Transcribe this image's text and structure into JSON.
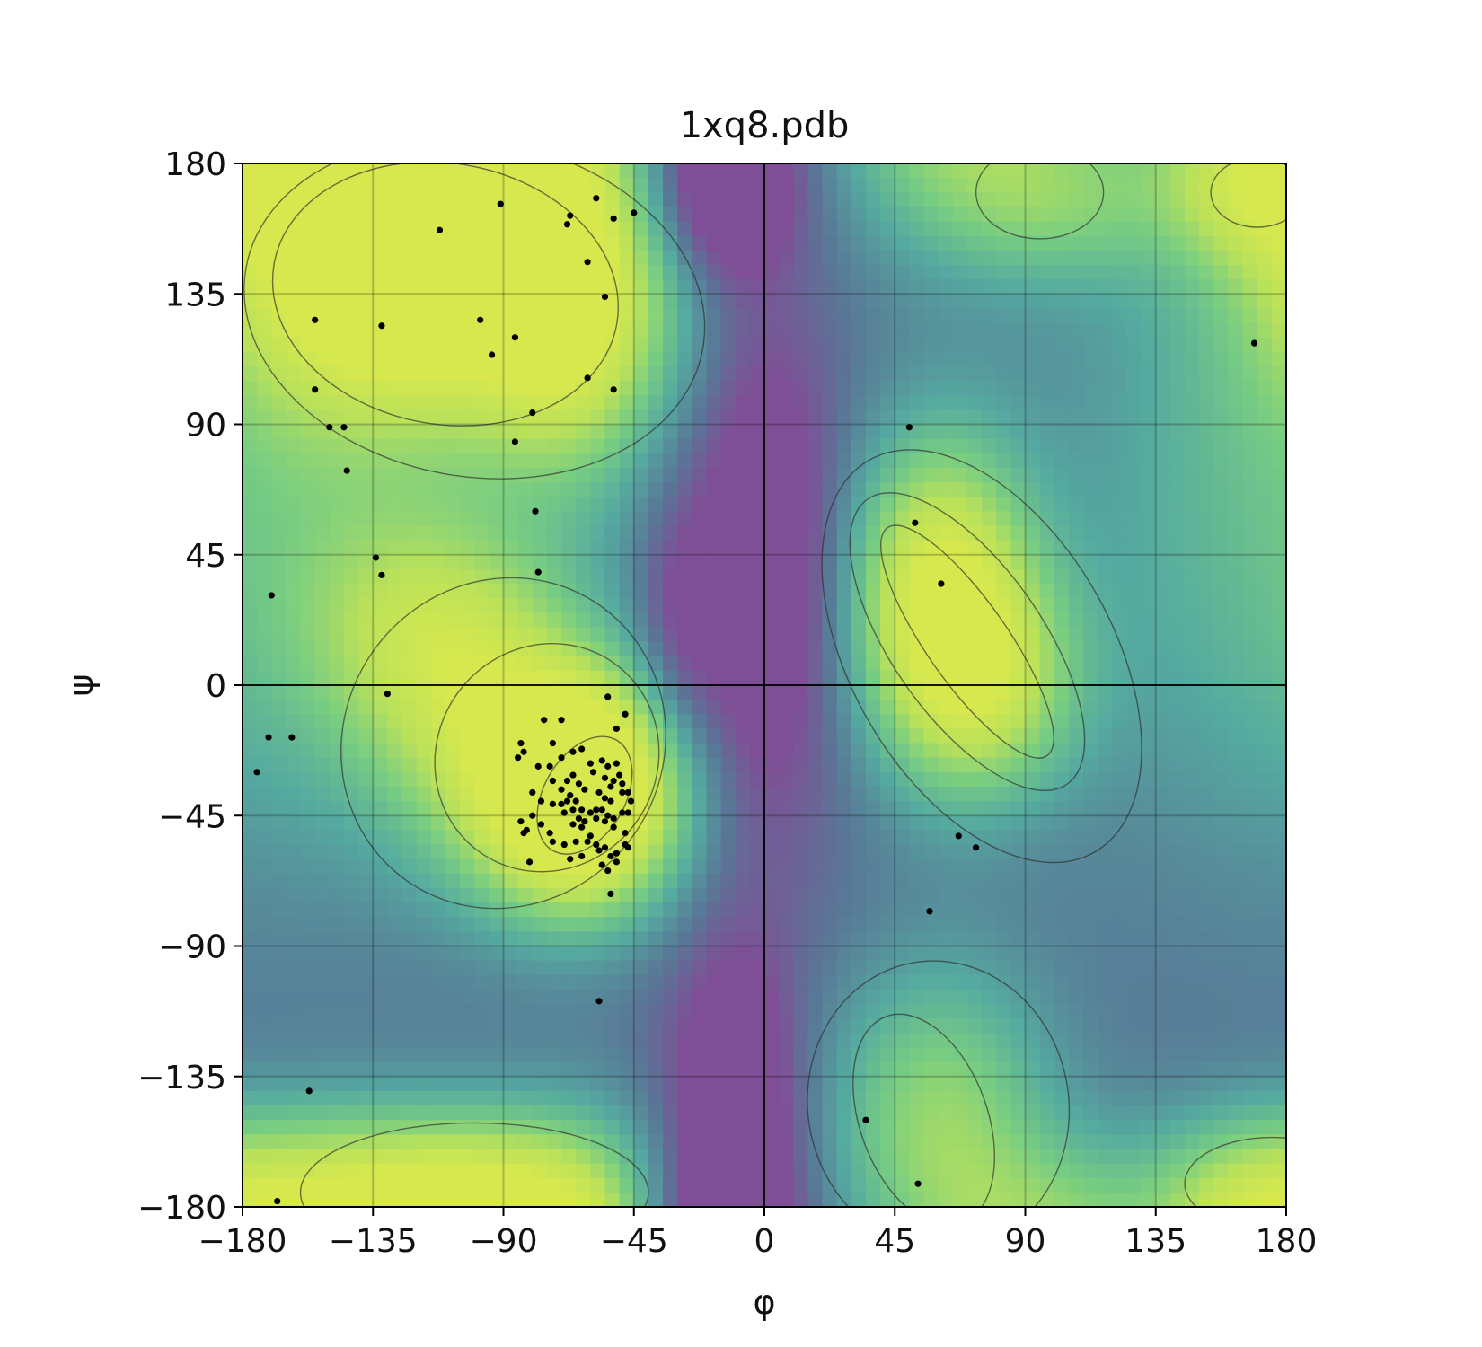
{
  "chart_data": {
    "type": "scatter",
    "title": "1xq8.pdb",
    "xlabel": "φ",
    "ylabel": "ψ",
    "xlim": [
      -180,
      180
    ],
    "ylim": [
      -180,
      180
    ],
    "x_ticks": [
      -180,
      -135,
      -90,
      -45,
      0,
      45,
      90,
      135,
      180
    ],
    "y_ticks": [
      -180,
      -135,
      -90,
      -45,
      0,
      45,
      90,
      135,
      180
    ],
    "x_tick_labels": [
      "−180",
      "−135",
      "−90",
      "−45",
      "0",
      "45",
      "90",
      "135",
      "180"
    ],
    "y_tick_labels": [
      "−180",
      "−135",
      "−90",
      "−45",
      "0",
      "45",
      "90",
      "135",
      "180"
    ],
    "grid": true,
    "background": "density heatmap (viridis) with contour lines",
    "colors": {
      "point": "#000000",
      "contour": "#2b2b2b",
      "high_density": "#d4e84e",
      "mid_density": "#5fb89a",
      "low_density": "#7e4f96"
    },
    "points": [
      [
        -112,
        157
      ],
      [
        -91,
        166
      ],
      [
        -68,
        159
      ],
      [
        -67,
        162
      ],
      [
        -58,
        168
      ],
      [
        -52,
        161
      ],
      [
        -45,
        163
      ],
      [
        -61,
        146
      ],
      [
        -55,
        134
      ],
      [
        -155,
        126
      ],
      [
        -132,
        124
      ],
      [
        -98,
        126
      ],
      [
        -94,
        114
      ],
      [
        -86,
        120
      ],
      [
        -61,
        106
      ],
      [
        -52,
        102
      ],
      [
        -155,
        102
      ],
      [
        -150,
        89
      ],
      [
        -145,
        89
      ],
      [
        -144,
        74
      ],
      [
        -80,
        94
      ],
      [
        -86,
        84
      ],
      [
        -79,
        60
      ],
      [
        -78,
        39
      ],
      [
        -134,
        44
      ],
      [
        -132,
        38
      ],
      [
        -170,
        31
      ],
      [
        -130,
        -3
      ],
      [
        -171,
        -18
      ],
      [
        -163,
        -18
      ],
      [
        -175,
        -30
      ],
      [
        -54,
        -4
      ],
      [
        -48,
        -10
      ],
      [
        -51,
        -15
      ],
      [
        -76,
        -12
      ],
      [
        -70,
        -12
      ],
      [
        -73,
        -20
      ],
      [
        -84,
        -20
      ],
      [
        -83,
        -23
      ],
      [
        -85,
        -25
      ],
      [
        -66,
        -23
      ],
      [
        -63,
        -22
      ],
      [
        -70,
        -25
      ],
      [
        -74,
        -28
      ],
      [
        -78,
        -28
      ],
      [
        -60,
        -27
      ],
      [
        -56,
        -26
      ],
      [
        -54,
        -28
      ],
      [
        -51,
        -27
      ],
      [
        -66,
        -31
      ],
      [
        -59,
        -30
      ],
      [
        -55,
        -32
      ],
      [
        -53,
        -35
      ],
      [
        -52,
        -33
      ],
      [
        -50,
        -31
      ],
      [
        -49,
        -34
      ],
      [
        -73,
        -33
      ],
      [
        -68,
        -33
      ],
      [
        -64,
        -34
      ],
      [
        -62,
        -36
      ],
      [
        -57,
        -37
      ],
      [
        -55,
        -39
      ],
      [
        -53,
        -40
      ],
      [
        -49,
        -37
      ],
      [
        -47,
        -37
      ],
      [
        -46,
        -40
      ],
      [
        -70,
        -36
      ],
      [
        -67,
        -38
      ],
      [
        -65,
        -40
      ],
      [
        -80,
        -37
      ],
      [
        -77,
        -40
      ],
      [
        -73,
        -41
      ],
      [
        -70,
        -41
      ],
      [
        -68,
        -40
      ],
      [
        -66,
        -43
      ],
      [
        -63,
        -43
      ],
      [
        -60,
        -44
      ],
      [
        -58,
        -43
      ],
      [
        -56,
        -43
      ],
      [
        -54,
        -45
      ],
      [
        -52,
        -46
      ],
      [
        -49,
        -44
      ],
      [
        -47,
        -44
      ],
      [
        -69,
        -44
      ],
      [
        -64,
        -46
      ],
      [
        -62,
        -47
      ],
      [
        -58,
        -46
      ],
      [
        -55,
        -47
      ],
      [
        -52,
        -49
      ],
      [
        -48,
        -51
      ],
      [
        -80,
        -45
      ],
      [
        -84,
        -47
      ],
      [
        -82,
        -50
      ],
      [
        -77,
        -48
      ],
      [
        -74,
        -51
      ],
      [
        -66,
        -48
      ],
      [
        -63,
        -49
      ],
      [
        -60,
        -52
      ],
      [
        -58,
        -55
      ],
      [
        -55,
        -56
      ],
      [
        -51,
        -58
      ],
      [
        -48,
        -55
      ],
      [
        -73,
        -54
      ],
      [
        -69,
        -55
      ],
      [
        -65,
        -54
      ],
      [
        -61,
        -54
      ],
      [
        -57,
        -57
      ],
      [
        -53,
        -59
      ],
      [
        -51,
        -61
      ],
      [
        -56,
        -62
      ],
      [
        -47,
        -56
      ],
      [
        -81,
        -61
      ],
      [
        -83,
        -51
      ],
      [
        -67,
        -60
      ],
      [
        -54,
        -64
      ],
      [
        -63,
        -59
      ],
      [
        -53,
        -72
      ],
      [
        -57,
        -109
      ],
      [
        50,
        89
      ],
      [
        52,
        56
      ],
      [
        61,
        35
      ],
      [
        67,
        -52
      ],
      [
        73,
        -56
      ],
      [
        57,
        -78
      ],
      [
        35,
        -150
      ],
      [
        53,
        -172
      ],
      [
        169,
        118
      ],
      [
        -157,
        -140
      ],
      [
        -168,
        -178
      ]
    ]
  }
}
